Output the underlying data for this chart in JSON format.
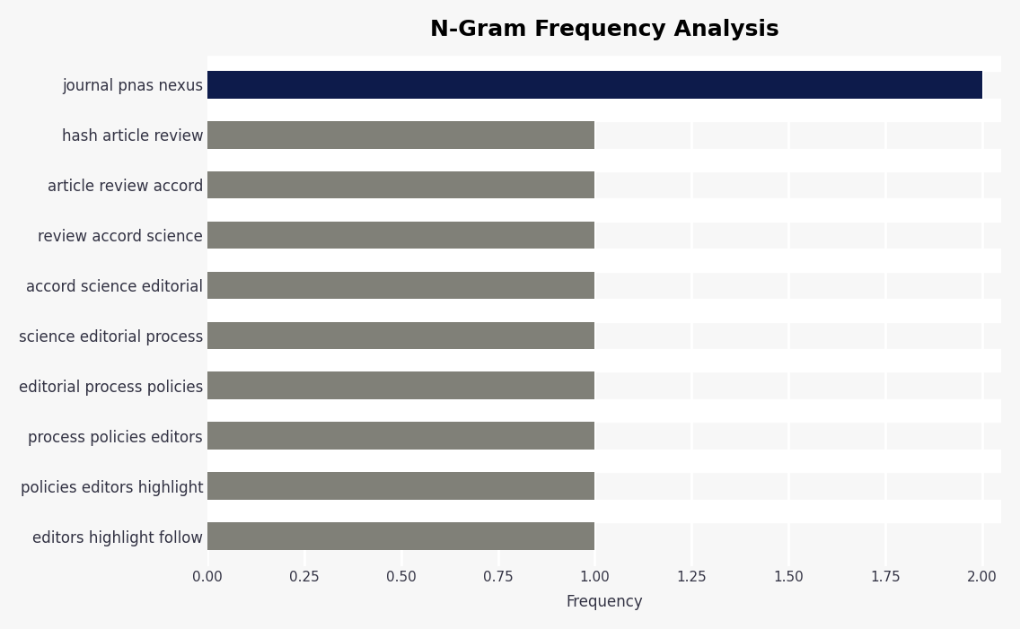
{
  "title": "N-Gram Frequency Analysis",
  "xlabel": "Frequency",
  "categories": [
    "editors highlight follow",
    "policies editors highlight",
    "process policies editors",
    "editorial process policies",
    "science editorial process",
    "accord science editorial",
    "review accord science",
    "article review accord",
    "hash article review",
    "journal pnas nexus"
  ],
  "values": [
    1,
    1,
    1,
    1,
    1,
    1,
    1,
    1,
    1,
    2
  ],
  "bar_colors": [
    "#808078",
    "#808078",
    "#808078",
    "#808078",
    "#808078",
    "#808078",
    "#808078",
    "#808078",
    "#808078",
    "#0d1b4b"
  ],
  "xlim": [
    0,
    2.05
  ],
  "xticks": [
    0.0,
    0.25,
    0.5,
    0.75,
    1.0,
    1.25,
    1.5,
    1.75,
    2.0
  ],
  "xtick_labels": [
    "0.00",
    "0.25",
    "0.50",
    "0.75",
    "1.00",
    "1.25",
    "1.50",
    "1.75",
    "2.00"
  ],
  "background_color": "#f7f7f7",
  "plot_bg_color": "#f7f7f7",
  "title_fontsize": 18,
  "label_fontsize": 12,
  "tick_fontsize": 11,
  "bar_height": 0.55,
  "text_color": "#333344",
  "grid_color": "#ffffff",
  "grid_linewidth": 2.0
}
